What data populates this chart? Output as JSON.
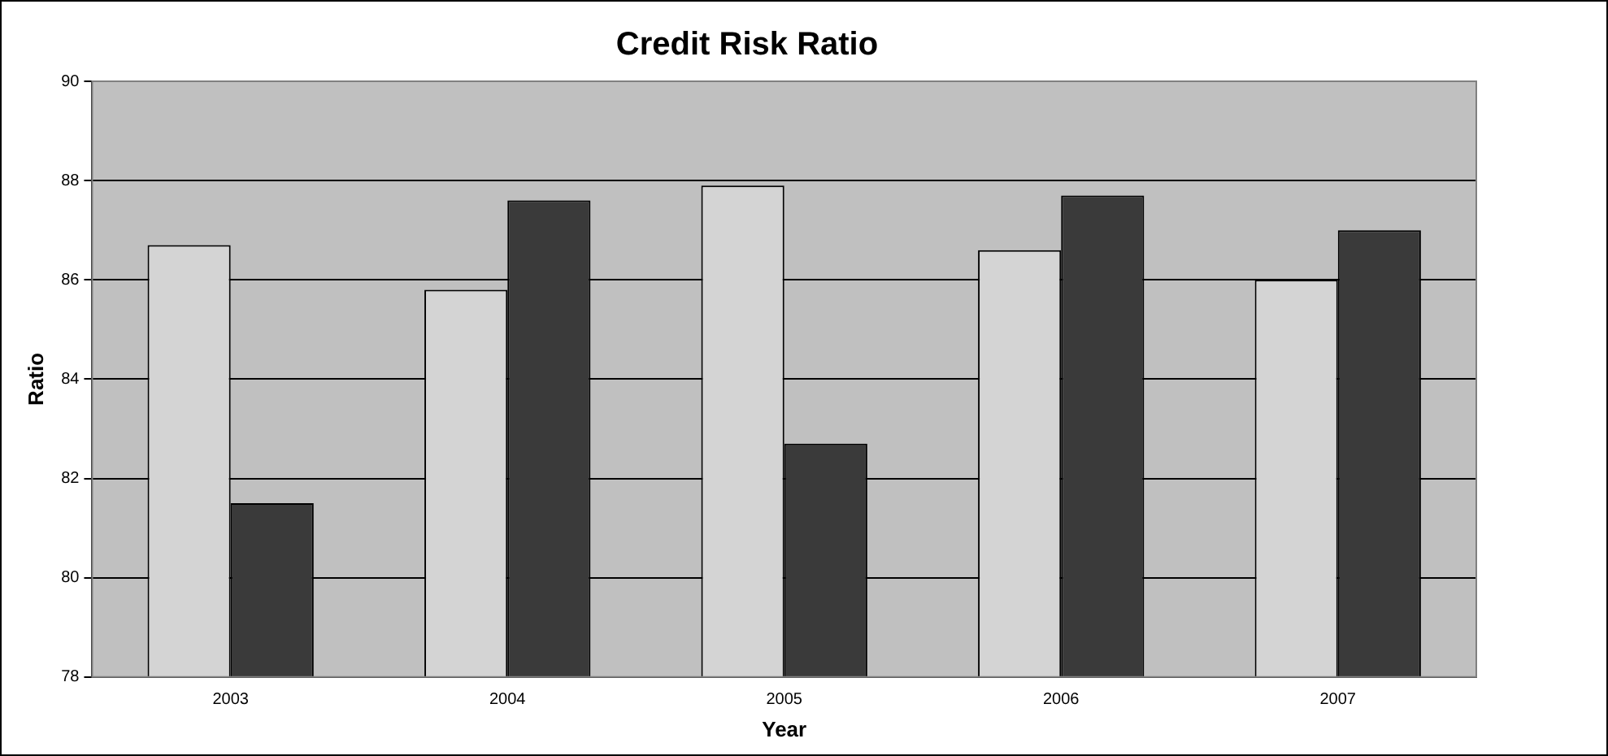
{
  "chart_data": {
    "type": "bar",
    "title": "Credit Risk Ratio",
    "xlabel": "Year",
    "ylabel": "Ratio",
    "categories": [
      "2003",
      "2004",
      "2005",
      "2006",
      "2007"
    ],
    "series": [
      {
        "color": "#d4d4d4",
        "values": [
          86.7,
          85.8,
          87.9,
          86.6,
          86.0
        ]
      },
      {
        "color": "#3a3a3a",
        "values": [
          81.5,
          87.6,
          82.7,
          87.7,
          87.0
        ]
      }
    ],
    "ylim": [
      78,
      90
    ],
    "yticks": [
      78,
      80,
      82,
      84,
      86,
      88,
      90
    ],
    "grid": "y",
    "legend": false
  }
}
